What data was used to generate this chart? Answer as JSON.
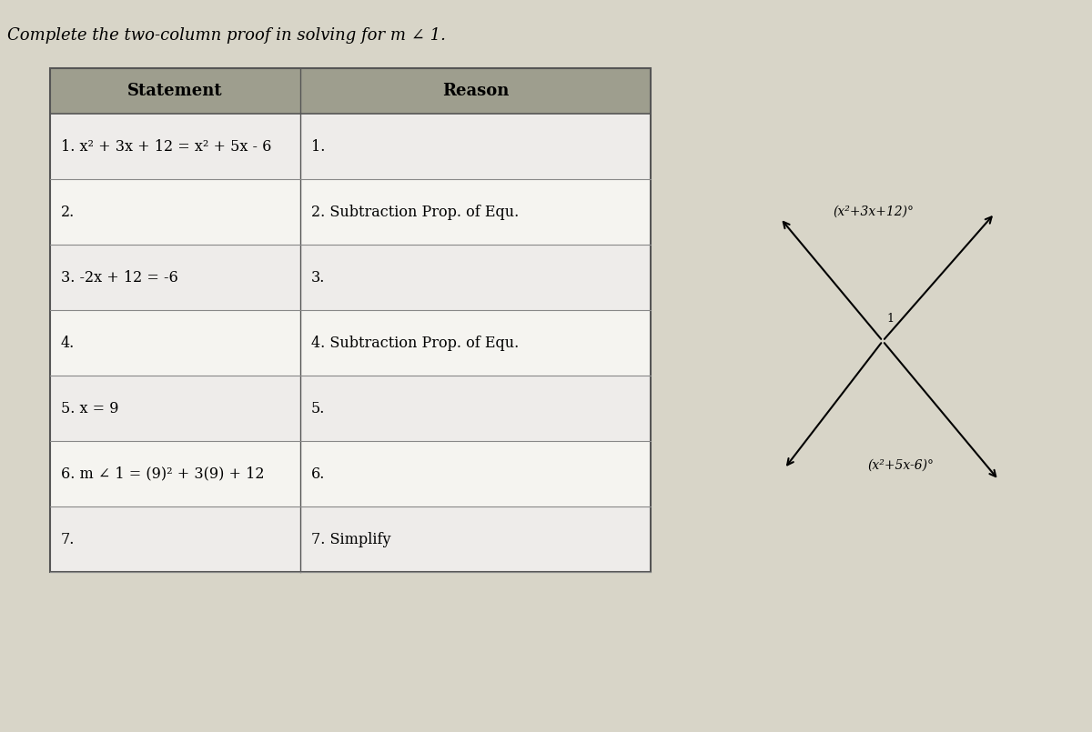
{
  "title": "Complete the two-column proof in solving for m ∠ 1.",
  "bg_color": "#d8d5c8",
  "table_bg": "#e8e6dc",
  "header_bg": "#9e9e8e",
  "cell_bg_light": "#eeecea",
  "cell_bg_white": "#f5f4f0",
  "header_text": [
    "Statement",
    "Reason"
  ],
  "rows": [
    [
      "1. x² + 3x + 12 = x² + 5x - 6",
      "1."
    ],
    [
      "2.",
      "2. Subtraction Prop. of Equ."
    ],
    [
      "3. -2x + 12 = -6",
      "3."
    ],
    [
      "4.",
      "4. Subtraction Prop. of Equ."
    ],
    [
      "5. x = 9",
      "5."
    ],
    [
      "6. m ∠ 1 = (9)² + 3(9) + 12",
      "6."
    ],
    [
      "7.",
      "7. Simplify"
    ]
  ],
  "diagram_label_top": "(x²+3x+12)°",
  "diagram_label_bot": "(x²+5x-6)°",
  "diagram_angle_label": "1"
}
